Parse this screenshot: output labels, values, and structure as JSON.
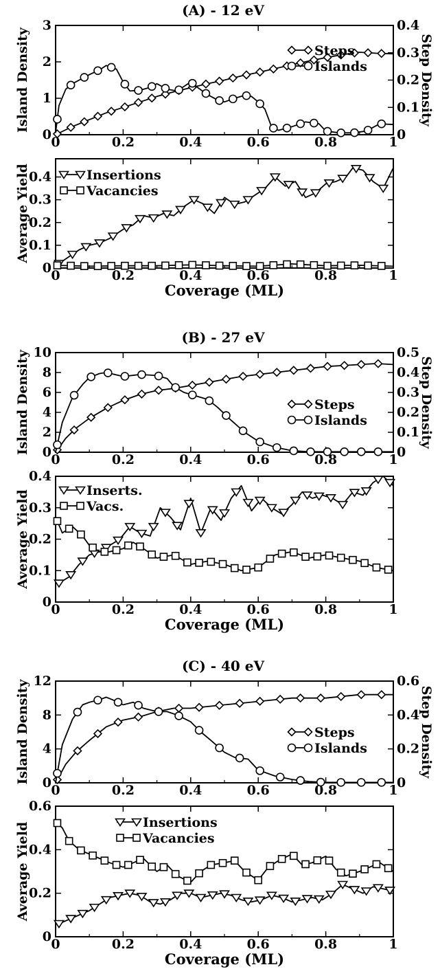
{
  "figure": {
    "panels": [
      {
        "title": "(A) - 12 eV"
      },
      {
        "title": "(B) - 27 eV"
      },
      {
        "title": "(C) - 40 eV"
      }
    ]
  },
  "chart_data": [
    {
      "type": "line",
      "panel": "(A) - 12 eV",
      "title": "(A) - 12 eV",
      "xlabel": "",
      "ylabel": "Island Density",
      "y2label": "Step Density",
      "xlim": [
        0,
        1
      ],
      "ylim": [
        0,
        3
      ],
      "y2lim": [
        0,
        0.4
      ],
      "xticks": [
        0,
        0.2,
        0.4,
        0.6,
        0.8,
        1
      ],
      "xticklabels": [
        "0",
        "0.2",
        "0.4",
        "0.6",
        "0.8",
        "1"
      ],
      "yticks": [
        0,
        1,
        2,
        3
      ],
      "yticklabels": [
        "0",
        "1",
        "2",
        "3"
      ],
      "y2ticks": [
        0,
        0.1,
        0.2,
        0.3,
        0.4
      ],
      "y2ticklabels": [
        "0",
        "0.1",
        "0.2",
        "0.3",
        "0.4"
      ],
      "legend_position": "right",
      "series": [
        {
          "name": "Steps",
          "axis": "right",
          "marker": "diamond",
          "step": 0.04,
          "x": [
            0,
            0.05,
            0.1,
            0.15,
            0.2,
            0.25,
            0.3,
            0.35,
            0.4,
            0.45,
            0.5,
            0.55,
            0.6,
            0.65,
            0.7,
            0.75,
            0.8,
            0.85,
            0.9,
            0.95,
            1.0
          ],
          "y": [
            0,
            0.03,
            0.055,
            0.08,
            0.1,
            0.12,
            0.14,
            0.157,
            0.172,
            0.187,
            0.2,
            0.215,
            0.228,
            0.242,
            0.256,
            0.27,
            0.282,
            0.293,
            0.302,
            0.298,
            0.296
          ]
        },
        {
          "name": "Islands",
          "axis": "left",
          "marker": "circle",
          "step": 0.04,
          "x": [
            0,
            0.01,
            0.03,
            0.05,
            0.07,
            0.1,
            0.13,
            0.15,
            0.18,
            0.2,
            0.22,
            0.25,
            0.28,
            0.3,
            0.33,
            0.36,
            0.4,
            0.42,
            0.45,
            0.48,
            0.5,
            0.53,
            0.56,
            0.58,
            0.6,
            0.62,
            0.64,
            0.66,
            0.7,
            0.74,
            0.78,
            0.8,
            0.84,
            0.88,
            0.92,
            0.96,
            1.0
          ],
          "y": [
            0.05,
            0.8,
            1.25,
            1.4,
            1.5,
            1.65,
            1.78,
            1.9,
            1.8,
            1.45,
            1.2,
            1.22,
            1.3,
            1.4,
            1.25,
            1.2,
            1.45,
            1.3,
            1.1,
            0.95,
            0.9,
            1.0,
            1.08,
            1.05,
            0.9,
            0.7,
            0.2,
            0.12,
            0.22,
            0.35,
            0.3,
            0.1,
            0.05,
            0.05,
            0.1,
            0.3,
            0.28
          ]
        }
      ]
    },
    {
      "type": "line",
      "panel": "(A) - 12 eV",
      "xlabel": "Coverage (ML)",
      "ylabel": "Average Yield",
      "xlim": [
        0,
        1
      ],
      "ylim": [
        0,
        0.48
      ],
      "xticks": [
        0,
        0.2,
        0.4,
        0.6,
        0.8,
        1
      ],
      "xticklabels": [
        "0",
        "0.2",
        "0.4",
        "0.6",
        "0.8",
        "1"
      ],
      "yticks": [
        0,
        0.1,
        0.2,
        0.3,
        0.4
      ],
      "yticklabels": [
        "0",
        "0.1",
        "0.2",
        "0.3",
        "0.4"
      ],
      "legend_position": "top-left",
      "series": [
        {
          "name": "Insertions",
          "marker": "triangle-down",
          "step": 0.04,
          "x": [
            0.01,
            0.04,
            0.07,
            0.1,
            0.13,
            0.16,
            0.2,
            0.23,
            0.26,
            0.29,
            0.32,
            0.35,
            0.38,
            0.41,
            0.44,
            0.47,
            0.5,
            0.53,
            0.56,
            0.59,
            0.62,
            0.65,
            0.68,
            0.71,
            0.74,
            0.77,
            0.8,
            0.83,
            0.86,
            0.88,
            0.91,
            0.94,
            0.97,
            1.0
          ],
          "y": [
            0.02,
            0.05,
            0.08,
            0.1,
            0.11,
            0.13,
            0.17,
            0.19,
            0.23,
            0.22,
            0.24,
            0.23,
            0.27,
            0.3,
            0.28,
            0.24,
            0.31,
            0.28,
            0.29,
            0.32,
            0.35,
            0.4,
            0.36,
            0.38,
            0.31,
            0.33,
            0.37,
            0.38,
            0.4,
            0.44,
            0.43,
            0.38,
            0.35,
            0.44
          ]
        },
        {
          "name": "Vacancies",
          "marker": "square",
          "step": 0.04,
          "x": [
            0,
            0.1,
            0.2,
            0.3,
            0.4,
            0.5,
            0.6,
            0.7,
            0.8,
            0.9,
            1.0
          ],
          "y": [
            0.012,
            0.008,
            0.01,
            0.01,
            0.014,
            0.01,
            0.008,
            0.018,
            0.01,
            0.012,
            0.008
          ]
        }
      ]
    },
    {
      "type": "line",
      "panel": "(B) - 27 eV",
      "title": "(B) - 27 eV",
      "xlabel": "",
      "ylabel": "Island Density",
      "y2label": "Step Density",
      "xlim": [
        0,
        1
      ],
      "ylim": [
        0,
        10
      ],
      "y2lim": [
        0,
        0.5
      ],
      "xticks": [
        0,
        0.2,
        0.4,
        0.6,
        0.8,
        1
      ],
      "xticklabels": [
        "0",
        "0.2",
        "0.4",
        "0.6",
        "0.8",
        "1"
      ],
      "yticks": [
        0,
        2,
        4,
        6,
        8,
        10
      ],
      "yticklabels": [
        "0",
        "2",
        "4",
        "6",
        "8",
        "10"
      ],
      "y2ticks": [
        0,
        0.1,
        0.2,
        0.3,
        0.4,
        0.5
      ],
      "y2ticklabels": [
        "0",
        "0.1",
        "0.2",
        "0.3",
        "0.4",
        "0.5"
      ],
      "legend_position": "right",
      "series": [
        {
          "name": "Steps",
          "axis": "right",
          "marker": "diamond",
          "step": 0.05,
          "x": [
            0,
            0.03,
            0.06,
            0.1,
            0.15,
            0.2,
            0.25,
            0.3,
            0.35,
            0.4,
            0.45,
            0.5,
            0.55,
            0.6,
            0.65,
            0.7,
            0.75,
            0.8,
            0.85,
            0.9,
            0.95,
            1.0
          ],
          "y": [
            0,
            0.07,
            0.12,
            0.17,
            0.22,
            0.26,
            0.29,
            0.31,
            0.32,
            0.335,
            0.35,
            0.365,
            0.38,
            0.39,
            0.4,
            0.41,
            0.42,
            0.43,
            0.435,
            0.44,
            0.445,
            0.44
          ]
        },
        {
          "name": "Islands",
          "axis": "left",
          "marker": "circle",
          "step": 0.05,
          "x": [
            0,
            0.02,
            0.05,
            0.08,
            0.1,
            0.13,
            0.15,
            0.2,
            0.25,
            0.3,
            0.33,
            0.35,
            0.38,
            0.42,
            0.45,
            0.48,
            0.52,
            0.56,
            0.6,
            0.65,
            0.7,
            0.75,
            0.8,
            0.9,
            1.0
          ],
          "y": [
            0,
            3,
            5.5,
            6.8,
            7.5,
            7.9,
            8.0,
            7.6,
            7.8,
            7.7,
            7.4,
            6.6,
            6.0,
            5.6,
            5.3,
            4.5,
            3.2,
            2.0,
            1.1,
            0.5,
            0.15,
            0.05,
            0.05,
            0.05,
            0.05
          ]
        }
      ]
    },
    {
      "type": "line",
      "panel": "(B) - 27 eV",
      "xlabel": "Coverage (ML)",
      "ylabel": "Average Yield",
      "xlim": [
        0,
        1
      ],
      "ylim": [
        0,
        0.4
      ],
      "xticks": [
        0,
        0.2,
        0.4,
        0.6,
        0.8,
        1
      ],
      "xticklabels": [
        "0",
        "0.2",
        "0.4",
        "0.6",
        "0.8",
        "1"
      ],
      "yticks": [
        0,
        0.1,
        0.2,
        0.3,
        0.4
      ],
      "yticklabels": [
        "0",
        "0.1",
        "0.2",
        "0.3",
        "0.4"
      ],
      "legend_position": "top-left",
      "series": [
        {
          "name": "Inserts.",
          "marker": "triangle-down",
          "step": 0.035,
          "x": [
            0.01,
            0.04,
            0.07,
            0.1,
            0.13,
            0.16,
            0.19,
            0.22,
            0.25,
            0.28,
            0.31,
            0.34,
            0.37,
            0.4,
            0.43,
            0.46,
            0.49,
            0.52,
            0.55,
            0.58,
            0.61,
            0.64,
            0.67,
            0.7,
            0.73,
            0.76,
            0.79,
            0.82,
            0.85,
            0.88,
            0.91,
            0.94,
            0.97,
            1.0
          ],
          "y": [
            0.06,
            0.08,
            0.12,
            0.15,
            0.16,
            0.18,
            0.2,
            0.24,
            0.22,
            0.21,
            0.3,
            0.27,
            0.23,
            0.33,
            0.22,
            0.3,
            0.26,
            0.33,
            0.37,
            0.29,
            0.33,
            0.3,
            0.28,
            0.31,
            0.35,
            0.33,
            0.34,
            0.33,
            0.31,
            0.35,
            0.34,
            0.38,
            0.4,
            0.37
          ]
        },
        {
          "name": "Vacs.",
          "marker": "square",
          "step": 0.035,
          "x": [
            0.0,
            0.02,
            0.05,
            0.08,
            0.1,
            0.13,
            0.16,
            0.2,
            0.23,
            0.26,
            0.3,
            0.35,
            0.4,
            0.45,
            0.5,
            0.55,
            0.6,
            0.65,
            0.7,
            0.75,
            0.8,
            0.85,
            0.9,
            0.95,
            1.0
          ],
          "y": [
            0.27,
            0.22,
            0.24,
            0.21,
            0.18,
            0.16,
            0.16,
            0.17,
            0.19,
            0.17,
            0.14,
            0.15,
            0.12,
            0.13,
            0.12,
            0.1,
            0.11,
            0.15,
            0.16,
            0.14,
            0.15,
            0.14,
            0.13,
            0.11,
            0.1
          ]
        }
      ]
    },
    {
      "type": "line",
      "panel": "(C) - 40 eV",
      "title": "(C) - 40 eV",
      "xlabel": "",
      "ylabel": "Island Density",
      "y2label": "Step Density",
      "xlim": [
        0,
        1
      ],
      "ylim": [
        0,
        12
      ],
      "y2lim": [
        0,
        0.6
      ],
      "xticks": [
        0,
        0.2,
        0.4,
        0.6,
        0.8,
        1
      ],
      "xticklabels": [
        "0",
        "0.2",
        "0.4",
        "0.6",
        "0.8",
        "1"
      ],
      "yticks": [
        0,
        4,
        8,
        12
      ],
      "yticklabels": [
        "0",
        "4",
        "8",
        "12"
      ],
      "y2ticks": [
        0,
        0.2,
        0.4,
        0.6
      ],
      "y2ticklabels": [
        "0",
        "0.2",
        "0.4",
        "0.6"
      ],
      "legend_position": "right",
      "series": [
        {
          "name": "Steps",
          "axis": "right",
          "marker": "diamond",
          "step": 0.06,
          "x": [
            0,
            0.03,
            0.06,
            0.1,
            0.15,
            0.2,
            0.25,
            0.3,
            0.35,
            0.4,
            0.45,
            0.5,
            0.55,
            0.6,
            0.65,
            0.7,
            0.75,
            0.8,
            0.85,
            0.9,
            0.95,
            1.0
          ],
          "y": [
            0,
            0.11,
            0.18,
            0.25,
            0.33,
            0.37,
            0.39,
            0.42,
            0.44,
            0.44,
            0.45,
            0.46,
            0.47,
            0.48,
            0.49,
            0.5,
            0.5,
            0.5,
            0.51,
            0.52,
            0.52,
            0.52
          ]
        },
        {
          "name": "Islands",
          "axis": "left",
          "marker": "circle",
          "step": 0.06,
          "x": [
            0,
            0.02,
            0.05,
            0.08,
            0.1,
            0.13,
            0.15,
            0.18,
            0.2,
            0.23,
            0.26,
            0.3,
            0.33,
            0.36,
            0.4,
            0.43,
            0.46,
            0.5,
            0.53,
            0.57,
            0.6,
            0.65,
            0.7,
            0.75,
            0.8,
            0.9,
            1.0
          ],
          "y": [
            0,
            4.5,
            7.5,
            9.2,
            9.5,
            9.8,
            10.1,
            9.6,
            9.2,
            9.5,
            8.8,
            8.4,
            8.4,
            8.0,
            7.2,
            6.0,
            5.0,
            3.6,
            3.0,
            2.8,
            1.5,
            0.8,
            0.4,
            0.15,
            0.05,
            0.05,
            0.05
          ]
        }
      ]
    },
    {
      "type": "line",
      "panel": "(C) - 40 eV",
      "xlabel": "Coverage (ML)",
      "ylabel": "Average Yield",
      "xlim": [
        0,
        1
      ],
      "ylim": [
        0,
        0.6
      ],
      "xticks": [
        0,
        0.2,
        0.4,
        0.6,
        0.8,
        1
      ],
      "xticklabels": [
        "0",
        "0.2",
        "0.4",
        "0.6",
        "0.8",
        "1"
      ],
      "yticks": [
        0,
        0.2,
        0.4,
        0.6
      ],
      "yticklabels": [
        "0",
        "0.2",
        "0.4",
        "0.6"
      ],
      "legend_position": "top-center",
      "series": [
        {
          "name": "Insertions",
          "marker": "triangle-down",
          "step": 0.035,
          "x": [
            0.01,
            0.04,
            0.07,
            0.1,
            0.13,
            0.16,
            0.19,
            0.22,
            0.25,
            0.28,
            0.31,
            0.34,
            0.37,
            0.4,
            0.43,
            0.46,
            0.49,
            0.52,
            0.55,
            0.58,
            0.61,
            0.64,
            0.67,
            0.7,
            0.73,
            0.76,
            0.79,
            0.82,
            0.85,
            0.88,
            0.91,
            0.94,
            0.97,
            1.0
          ],
          "y": [
            0.06,
            0.08,
            0.1,
            0.12,
            0.15,
            0.18,
            0.19,
            0.2,
            0.19,
            0.16,
            0.15,
            0.17,
            0.2,
            0.2,
            0.18,
            0.19,
            0.2,
            0.19,
            0.17,
            0.16,
            0.17,
            0.19,
            0.18,
            0.16,
            0.17,
            0.18,
            0.17,
            0.2,
            0.24,
            0.22,
            0.2,
            0.23,
            0.22,
            0.21
          ]
        },
        {
          "name": "Vacancies",
          "marker": "square",
          "step": 0.035,
          "x": [
            0.0,
            0.02,
            0.04,
            0.07,
            0.1,
            0.13,
            0.16,
            0.2,
            0.23,
            0.26,
            0.3,
            0.33,
            0.36,
            0.4,
            0.43,
            0.46,
            0.5,
            0.53,
            0.56,
            0.6,
            0.63,
            0.66,
            0.7,
            0.73,
            0.76,
            0.8,
            0.83,
            0.86,
            0.9,
            0.93,
            0.96,
            1.0
          ],
          "y": [
            0.53,
            0.5,
            0.44,
            0.4,
            0.38,
            0.36,
            0.34,
            0.32,
            0.34,
            0.36,
            0.3,
            0.33,
            0.28,
            0.25,
            0.3,
            0.33,
            0.34,
            0.35,
            0.3,
            0.26,
            0.32,
            0.35,
            0.38,
            0.33,
            0.34,
            0.37,
            0.31,
            0.28,
            0.3,
            0.32,
            0.34,
            0.3
          ]
        }
      ]
    }
  ]
}
